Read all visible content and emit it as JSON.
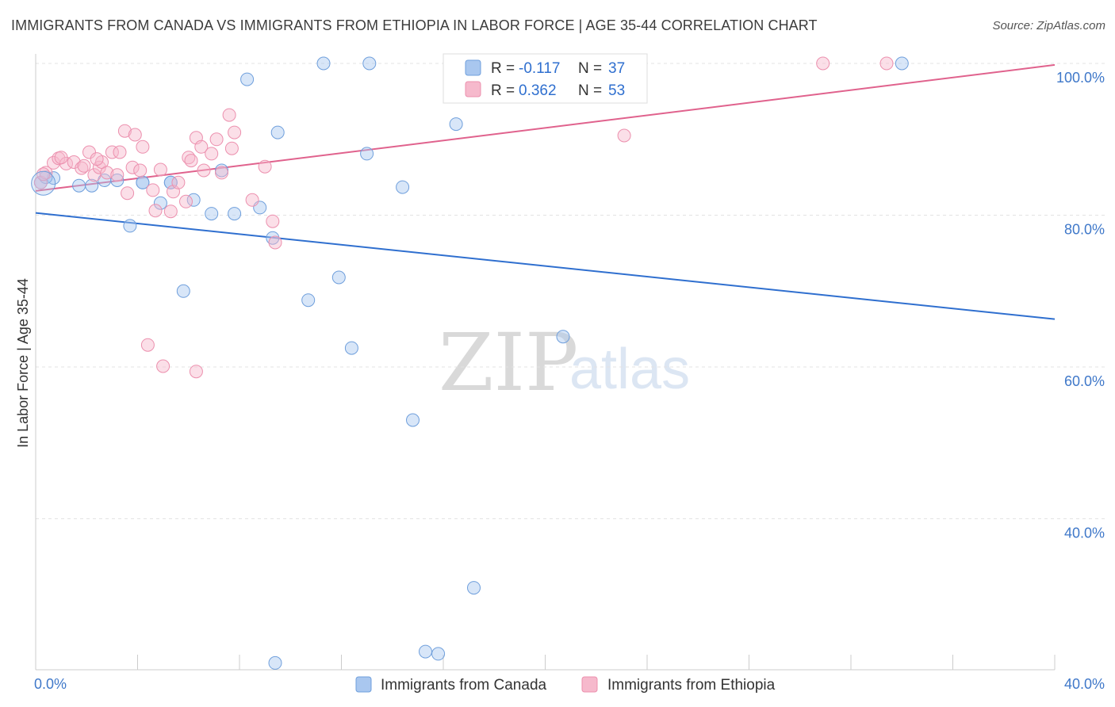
{
  "header": {
    "title": "IMMIGRANTS FROM CANADA VS IMMIGRANTS FROM ETHIOPIA IN LABOR FORCE | AGE 35-44 CORRELATION CHART",
    "source": "Source: ZipAtlas.com"
  },
  "watermark": {
    "zip": "ZIP",
    "atlas": "atlas"
  },
  "legend_top": {
    "canada": {
      "r_label": "R =",
      "r_value": "-0.117",
      "n_label": "N =",
      "n_value": "37"
    },
    "ethiopia": {
      "r_label": "R =",
      "r_value": "0.362",
      "n_label": "N =",
      "n_value": "53"
    }
  },
  "colors": {
    "canada_fill": "#a9c7ef",
    "canada_stroke": "#6f9fdc",
    "canada_line": "#2f6fcf",
    "ethiopia_fill": "#f6b9cc",
    "ethiopia_stroke": "#ec90ae",
    "ethiopia_line": "#e0628d",
    "tick_text": "#3f78c9",
    "grid": "#e3e3e3"
  },
  "chart_data": {
    "type": "scatter",
    "title": "IMMIGRANTS FROM CANADA VS IMMIGRANTS FROM ETHIOPIA IN LABOR FORCE | AGE 35-44 CORRELATION CHART",
    "xlabel": "",
    "ylabel": "In Labor Force | Age 35-44",
    "xlim": [
      0,
      40
    ],
    "ylim": [
      22,
      102
    ],
    "x_ticks": [
      "0.0%",
      "40.0%"
    ],
    "y_ticks": [
      {
        "value": 100,
        "label": "100.0%"
      },
      {
        "value": 80,
        "label": "80.0%"
      },
      {
        "value": 60,
        "label": "60.0%"
      },
      {
        "value": 40,
        "label": "40.0%"
      }
    ],
    "grid": true,
    "legend_position": "top-center",
    "series": [
      {
        "name": "Immigrants from Canada",
        "r": -0.117,
        "n": 37,
        "trend": {
          "x": [
            0,
            40
          ],
          "y": [
            80.3,
            66.3
          ]
        },
        "points": [
          [
            0.2,
            84.3
          ],
          [
            0.7,
            84.9
          ],
          [
            1.7,
            83.9
          ],
          [
            2.2,
            83.9
          ],
          [
            2.7,
            84.6
          ],
          [
            3.2,
            84.6
          ],
          [
            3.7,
            78.6
          ],
          [
            4.2,
            84.3
          ],
          [
            4.9,
            81.6
          ],
          [
            5.3,
            84.3
          ],
          [
            5.8,
            70.0
          ],
          [
            6.2,
            82.0
          ],
          [
            6.9,
            80.2
          ],
          [
            7.3,
            85.9
          ],
          [
            7.8,
            80.2
          ],
          [
            8.3,
            97.9
          ],
          [
            8.8,
            81.0
          ],
          [
            9.3,
            77.0
          ],
          [
            9.5,
            90.9
          ],
          [
            10.7,
            68.8
          ],
          [
            11.3,
            100.0
          ],
          [
            11.9,
            71.8
          ],
          [
            12.4,
            62.5
          ],
          [
            13.1,
            100.0
          ],
          [
            13.0,
            88.1
          ],
          [
            14.4,
            83.7
          ],
          [
            14.8,
            53.0
          ],
          [
            15.3,
            22.5
          ],
          [
            15.8,
            22.2
          ],
          [
            16.5,
            92.0
          ],
          [
            17.2,
            30.9
          ],
          [
            20.7,
            64.0
          ],
          [
            34.0,
            100.0
          ],
          [
            9.4,
            21.0
          ],
          [
            0.4,
            85.0
          ],
          [
            5.3,
            84.3
          ],
          [
            4.2,
            84.3
          ]
        ]
      },
      {
        "name": "Immigrants from Ethiopia",
        "r": 0.362,
        "n": 53,
        "trend": {
          "x": [
            0,
            40
          ],
          "y": [
            83.2,
            99.8
          ]
        },
        "points": [
          [
            0.2,
            84.3
          ],
          [
            0.4,
            85.6
          ],
          [
            0.7,
            86.9
          ],
          [
            0.9,
            87.5
          ],
          [
            1.2,
            86.8
          ],
          [
            1.5,
            87.0
          ],
          [
            1.8,
            86.2
          ],
          [
            2.1,
            88.3
          ],
          [
            2.3,
            85.3
          ],
          [
            2.5,
            86.3
          ],
          [
            2.6,
            87.0
          ],
          [
            2.8,
            85.6
          ],
          [
            3.0,
            88.3
          ],
          [
            3.2,
            85.3
          ],
          [
            3.3,
            88.3
          ],
          [
            3.5,
            91.1
          ],
          [
            3.6,
            82.9
          ],
          [
            3.8,
            86.3
          ],
          [
            3.9,
            90.6
          ],
          [
            4.1,
            85.9
          ],
          [
            4.2,
            89.0
          ],
          [
            4.6,
            83.3
          ],
          [
            4.7,
            80.6
          ],
          [
            5.0,
            60.1
          ],
          [
            5.3,
            80.5
          ],
          [
            5.4,
            83.1
          ],
          [
            5.6,
            84.3
          ],
          [
            5.9,
            81.8
          ],
          [
            6.0,
            87.6
          ],
          [
            6.3,
            90.2
          ],
          [
            6.5,
            89.0
          ],
          [
            6.6,
            85.9
          ],
          [
            6.9,
            88.1
          ],
          [
            7.1,
            90.0
          ],
          [
            7.3,
            85.6
          ],
          [
            7.6,
            93.2
          ],
          [
            7.7,
            88.8
          ],
          [
            7.8,
            90.9
          ],
          [
            8.5,
            82.0
          ],
          [
            9.0,
            86.4
          ],
          [
            9.3,
            79.2
          ],
          [
            9.4,
            76.4
          ],
          [
            4.4,
            62.9
          ],
          [
            6.3,
            59.4
          ],
          [
            23.1,
            90.5
          ],
          [
            30.9,
            100.0
          ],
          [
            33.4,
            100.0
          ],
          [
            1.0,
            87.6
          ],
          [
            1.9,
            86.5
          ],
          [
            2.4,
            87.4
          ],
          [
            6.1,
            87.2
          ],
          [
            0.3,
            85.4
          ],
          [
            4.9,
            86.0
          ]
        ]
      }
    ]
  },
  "bottom_legend": {
    "canada": "Immigrants from Canada",
    "ethiopia": "Immigrants from Ethiopia"
  }
}
